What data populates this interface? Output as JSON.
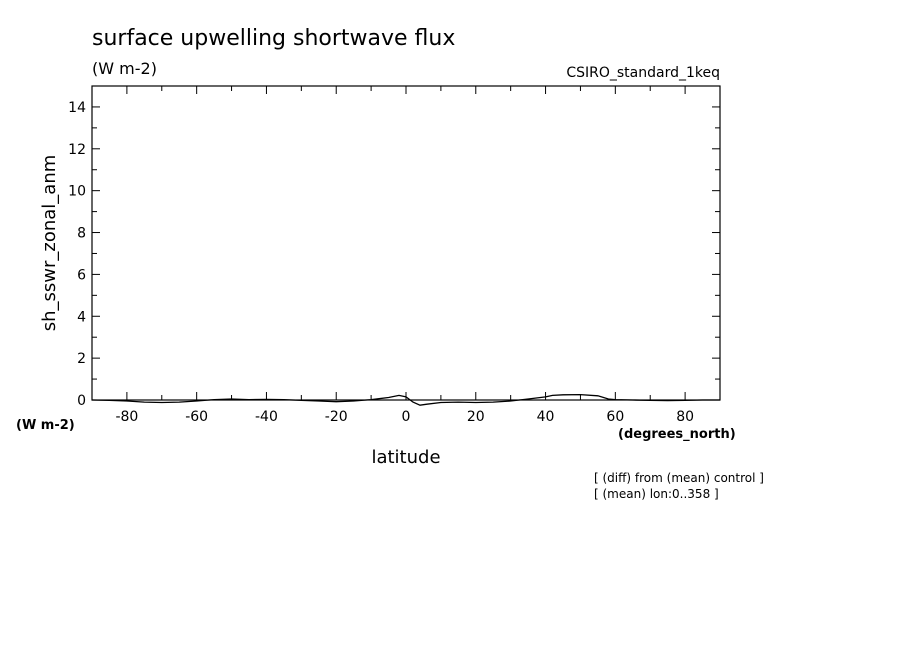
{
  "header": {
    "title": "surface upwelling shortwave flux",
    "units": "(W m-2)",
    "run_name": "CSIRO_standard_1keq"
  },
  "footer": {
    "y_units": "(W m-2)",
    "x_units": "(degrees_north)",
    "note_line1": "[ (diff) from (mean) control ]",
    "note_line2": "[ (mean) lon:0..358 ]"
  },
  "chart_data": {
    "type": "line",
    "xlabel": "latitude",
    "ylabel": "sh_sswr_zonal_anm",
    "xlim": [
      -90,
      90
    ],
    "ylim": [
      0,
      15
    ],
    "x_ticks": [
      -80,
      -60,
      -40,
      -20,
      0,
      20,
      40,
      60,
      80
    ],
    "x_tick_labels": [
      "-80",
      "-60",
      "-40",
      "-20",
      "0",
      "20",
      "40",
      "60",
      "80"
    ],
    "y_ticks": [
      0,
      2,
      4,
      6,
      8,
      10,
      12,
      14
    ],
    "y_tick_labels": [
      "0",
      "2",
      "4",
      "6",
      "8",
      "10",
      "12",
      "14"
    ],
    "grid": false,
    "line_color": "#000000",
    "series": [
      {
        "x": [
          -90,
          -85,
          -80,
          -75,
          -70,
          -65,
          -60,
          -55,
          -50,
          -45,
          -40,
          -35,
          -30,
          -25,
          -20,
          -15,
          -10,
          -5,
          -2,
          0,
          2,
          4,
          6,
          10,
          15,
          20,
          25,
          30,
          35,
          40,
          42,
          45,
          50,
          55,
          58,
          60,
          65,
          70,
          75,
          80,
          85,
          90
        ],
        "y": [
          0.0,
          -0.02,
          -0.05,
          -0.1,
          -0.12,
          -0.1,
          -0.05,
          0.02,
          0.05,
          0.02,
          0.03,
          0.02,
          -0.02,
          -0.05,
          -0.08,
          -0.05,
          0.02,
          0.12,
          0.22,
          0.15,
          -0.1,
          -0.25,
          -0.2,
          -0.12,
          -0.1,
          -0.12,
          -0.1,
          -0.05,
          0.05,
          0.15,
          0.22,
          0.25,
          0.26,
          0.2,
          0.05,
          0.02,
          0.0,
          -0.02,
          -0.03,
          -0.02,
          0.0,
          0.0
        ]
      }
    ]
  }
}
